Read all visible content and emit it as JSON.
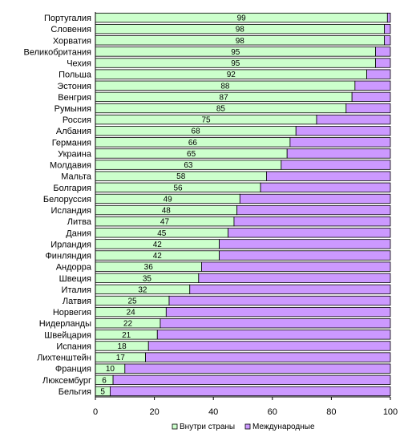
{
  "chart_data": {
    "type": "bar",
    "orientation": "horizontal",
    "stacked": "percent",
    "categories": [
      "Португалия",
      "Словения",
      "Хорватия",
      "Великобритания",
      "Чехия",
      "Польша",
      "Эстония",
      "Венгрия",
      "Румыния",
      "Россия",
      "Албания",
      "Германия",
      "Украина",
      "Молдавия",
      "Мальта",
      "Болгария",
      "Белоруссия",
      "Исландия",
      "Литва",
      "Дания",
      "Ирландия",
      "Финляндия",
      "Андорра",
      "Швеция",
      "Италия",
      "Латвия",
      "Норвегия",
      "Нидерланды",
      "Швейцария",
      "Испания",
      "Лихтенштейн",
      "Франция",
      "Люксембург",
      "Бельгия"
    ],
    "series": [
      {
        "name": "Внутри страны",
        "color": "#ccffcc",
        "values": [
          99,
          98,
          98,
          95,
          95,
          92,
          88,
          87,
          85,
          75,
          68,
          66,
          65,
          63,
          58,
          56,
          49,
          48,
          47,
          45,
          42,
          42,
          36,
          35,
          32,
          25,
          24,
          22,
          21,
          18,
          17,
          10,
          6,
          5
        ]
      },
      {
        "name": "Международные",
        "color": "#cc99ff",
        "values": [
          1,
          2,
          2,
          5,
          5,
          8,
          12,
          13,
          15,
          25,
          32,
          34,
          35,
          37,
          42,
          44,
          51,
          52,
          53,
          55,
          58,
          58,
          64,
          65,
          68,
          75,
          76,
          78,
          79,
          82,
          83,
          90,
          94,
          95
        ]
      }
    ],
    "xticks": [
      "0",
      "20",
      "40",
      "60",
      "80",
      "100"
    ],
    "xlim": [
      0,
      100
    ],
    "grid": false,
    "legend": "bottom"
  }
}
